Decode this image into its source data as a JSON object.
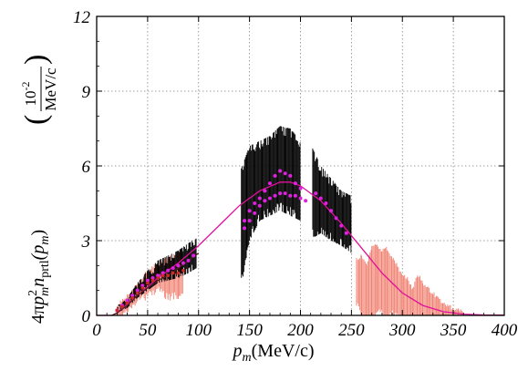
{
  "chart_data": {
    "type": "scatter",
    "title": "",
    "xlabel": "p_m(MeV/c)",
    "xlabel_parts": {
      "var": "p",
      "sub": "m",
      "unit": "(MeV/c)"
    },
    "ylabel_parts": {
      "prefix": "4π",
      "p": "p",
      "p_sup": "2",
      "p_sub": "m",
      "n": "n",
      "n_sub": "prtl",
      "arg": "(p",
      "arg_sub": "m",
      "close": ")",
      "unit_num": "10",
      "unit_num_sup": "-2",
      "unit_den": "MeV/c"
    },
    "xlim": [
      0,
      400
    ],
    "ylim": [
      0,
      12
    ],
    "x_ticks": [
      "0",
      "50",
      "100",
      "150",
      "200",
      "250",
      "300",
      "350",
      "400"
    ],
    "y_ticks": [
      "0",
      "3",
      "6",
      "9",
      "12"
    ],
    "grid": true,
    "grid_style": "dotted",
    "colors": {
      "black_band": "#000000",
      "magenta_points": "#e020e0",
      "magenta_curve": "#e0109a",
      "red_band": "#f08070",
      "red_points": "#d02828",
      "dark_curve": "#502020"
    },
    "series": [
      {
        "style": "black-error-band",
        "segments": [
          {
            "x": [
              20,
              30,
              40,
              50,
              60,
              70,
              80,
              90,
              98
            ],
            "lo": [
              0.1,
              0.3,
              0.7,
              1.0,
              1.3,
              1.4,
              1.5,
              1.7,
              1.9
            ],
            "hi": [
              0.3,
              0.7,
              1.3,
              1.8,
              2.2,
              2.4,
              2.6,
              2.9,
              3.1
            ]
          },
          {
            "x": [
              142,
              150,
              160,
              170,
              180,
              190,
              200
            ],
            "lo": [
              1.2,
              3.0,
              3.8,
              4.0,
              4.2,
              4.0,
              3.8
            ],
            "hi": [
              5.9,
              6.8,
              7.0,
              7.2,
              7.6,
              7.5,
              7.0
            ]
          },
          {
            "x": [
              212,
              220,
              230,
              240,
              250
            ],
            "lo": [
              3.1,
              3.3,
              3.0,
              2.8,
              2.5
            ],
            "hi": [
              6.7,
              6.0,
              5.5,
              5.0,
              4.8
            ]
          }
        ]
      },
      {
        "style": "magenta-points",
        "x": [
          20,
          25,
          30,
          35,
          40,
          45,
          50,
          55,
          60,
          65,
          70,
          75,
          80,
          85,
          90,
          95,
          145,
          150,
          155,
          160,
          165,
          170,
          175,
          180,
          185,
          190,
          195,
          200,
          215,
          220,
          225,
          230,
          235,
          240,
          245
        ],
        "y": [
          0.2,
          0.4,
          0.6,
          0.8,
          1.0,
          1.2,
          1.4,
          1.5,
          1.6,
          1.7,
          1.8,
          1.9,
          2.0,
          2.1,
          2.2,
          2.4,
          3.8,
          4.2,
          4.5,
          4.7,
          5.0,
          5.3,
          5.6,
          5.8,
          5.7,
          5.6,
          5.3,
          5.1,
          4.9,
          4.7,
          4.5,
          4.2,
          3.9,
          3.6,
          3.3
        ]
      },
      {
        "style": "magenta-points-lower",
        "x": [
          145,
          150,
          155,
          160,
          165,
          170,
          175,
          180,
          185,
          190,
          195,
          200,
          205
        ],
        "y": [
          3.5,
          3.8,
          4.1,
          4.4,
          4.6,
          4.7,
          4.8,
          4.9,
          4.9,
          4.8,
          4.8,
          4.7,
          4.6
        ]
      },
      {
        "style": "red-error-band",
        "x": [
          20,
          30,
          40,
          50,
          60,
          70,
          80,
          85,
          255,
          260,
          265,
          270,
          275,
          280,
          285,
          290,
          295,
          300,
          305,
          310,
          315,
          320,
          325,
          330,
          335,
          340,
          345,
          350,
          355,
          360
        ],
        "lo": [
          0.05,
          0.3,
          0.7,
          1.0,
          1.2,
          0.9,
          1.0,
          1.1,
          0.6,
          0.1,
          0.0,
          0.0,
          0.2,
          0.3,
          0.0,
          0.3,
          0.2,
          0.0,
          0.0,
          0.0,
          0.0,
          0.0,
          0.0,
          0.0,
          0.0,
          0.0,
          0.0,
          0.0,
          0.0,
          0.0
        ],
        "hi": [
          0.3,
          0.7,
          1.2,
          1.7,
          2.0,
          2.2,
          2.4,
          2.4,
          2.2,
          2.3,
          2.0,
          2.7,
          2.8,
          2.5,
          2.6,
          2.2,
          1.9,
          1.5,
          1.4,
          1.0,
          1.6,
          1.2,
          1.0,
          0.8,
          0.6,
          0.4,
          0.3,
          0.2,
          0.15,
          0.1
        ]
      },
      {
        "style": "red-points",
        "x": [
          20,
          25,
          30,
          35,
          40,
          45,
          50,
          55,
          60,
          65,
          70,
          75,
          80,
          85
        ],
        "y": [
          0.2,
          0.35,
          0.5,
          0.7,
          0.9,
          1.1,
          1.3,
          1.4,
          1.5,
          1.6,
          1.6,
          1.7,
          1.7,
          1.8
        ]
      },
      {
        "style": "magenta-curve",
        "x": [
          0,
          15,
          20,
          40,
          60,
          80,
          100,
          120,
          140,
          160,
          180,
          190,
          200,
          220,
          240,
          260,
          280,
          300,
          320,
          340,
          360,
          380,
          400
        ],
        "y": [
          0,
          0,
          0.1,
          0.8,
          1.5,
          2.1,
          2.8,
          3.6,
          4.4,
          5.0,
          5.35,
          5.35,
          5.2,
          4.6,
          3.7,
          2.7,
          1.7,
          0.9,
          0.4,
          0.15,
          0.05,
          0.02,
          0.01
        ]
      },
      {
        "style": "dark-curve",
        "x": [
          15,
          20,
          30,
          40,
          50,
          60,
          70,
          80,
          90,
          100
        ],
        "y": [
          0,
          0.1,
          0.4,
          0.8,
          1.1,
          1.4,
          1.6,
          1.9,
          2.2,
          2.5
        ]
      }
    ]
  }
}
